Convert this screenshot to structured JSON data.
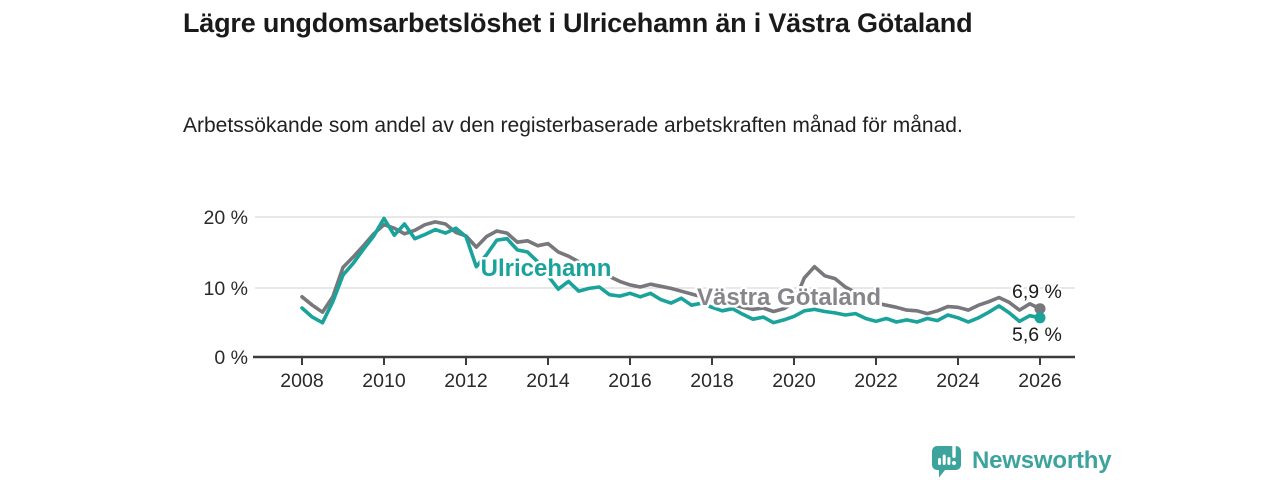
{
  "header": {
    "title": "Lägre ungdomsarbetslöshet i Ulricehamn än i Västra Götaland",
    "subtitle": "Arbetssökande som andel av den registerbaserade arbetskraften månad för månad."
  },
  "chart_data": {
    "type": "line",
    "title": "Lägre ungdomsarbetslöshet i Ulricehamn än i Västra Götaland",
    "subtitle": "Arbetssökande som andel av den registerbaserade arbetskraften månad för månad.",
    "unit": "%",
    "xlim": [
      2008,
      2026
    ],
    "ylim": [
      0,
      21
    ],
    "grid": "horizontal",
    "legend": "inline-labels",
    "x_tick_labels": [
      "2008",
      "2010",
      "2012",
      "2014",
      "2016",
      "2018",
      "2020",
      "2022",
      "2024",
      "2026"
    ],
    "y_tick_labels": [
      "0 %",
      "10 %",
      "20 %"
    ],
    "x": [
      2008,
      2008.25,
      2008.5,
      2008.75,
      2009,
      2009.25,
      2009.5,
      2009.75,
      2010,
      2010.25,
      2010.5,
      2010.75,
      2011,
      2011.25,
      2011.5,
      2011.75,
      2012,
      2012.25,
      2012.5,
      2012.75,
      2013,
      2013.25,
      2013.5,
      2013.75,
      2014,
      2014.25,
      2014.5,
      2014.75,
      2015,
      2015.25,
      2015.5,
      2015.75,
      2016,
      2016.25,
      2016.5,
      2016.75,
      2017,
      2017.25,
      2017.5,
      2017.75,
      2018,
      2018.25,
      2018.5,
      2018.75,
      2019,
      2019.25,
      2019.5,
      2019.75,
      2020,
      2020.25,
      2020.5,
      2020.75,
      2021,
      2021.25,
      2021.5,
      2021.75,
      2022,
      2022.25,
      2022.5,
      2022.75,
      2023,
      2023.25,
      2023.5,
      2023.75,
      2024,
      2024.25,
      2024.5,
      2024.75,
      2025,
      2025.25,
      2025.5,
      2025.75,
      2026
    ],
    "series": [
      {
        "name": "Västra Götaland",
        "color": "#77777c",
        "label_color": "#85858a",
        "end_label": "6,9 %",
        "end_value": 6.9,
        "values": [
          8.6,
          7.4,
          6.4,
          8.6,
          12.8,
          14.3,
          15.9,
          17.6,
          18.9,
          18.4,
          17.6,
          18.1,
          18.9,
          19.3,
          19.0,
          17.8,
          17.3,
          15.7,
          17.2,
          18.0,
          17.7,
          16.4,
          16.6,
          15.9,
          16.2,
          15.0,
          14.4,
          13.6,
          12.6,
          12.1,
          11.5,
          10.8,
          10.3,
          10.0,
          10.4,
          10.1,
          9.8,
          9.4,
          9.0,
          8.6,
          8.1,
          7.8,
          7.5,
          7.1,
          6.8,
          7.0,
          6.5,
          6.9,
          7.8,
          11.3,
          12.9,
          11.6,
          11.2,
          10.0,
          9.2,
          8.3,
          7.7,
          7.4,
          7.1,
          6.7,
          6.6,
          6.2,
          6.6,
          7.2,
          7.1,
          6.7,
          7.4,
          7.9,
          8.5,
          7.8,
          6.7,
          7.6,
          6.9
        ]
      },
      {
        "name": "Ulricehamn",
        "color": "#1aa39b",
        "label_color": "#1aa39b",
        "end_label": "5,6 %",
        "end_value": 5.6,
        "values": [
          7.0,
          5.7,
          4.9,
          7.9,
          11.7,
          13.4,
          15.4,
          17.3,
          19.8,
          17.4,
          19.0,
          16.9,
          17.5,
          18.2,
          17.7,
          18.4,
          17.2,
          12.9,
          14.6,
          16.7,
          16.9,
          15.3,
          15.0,
          13.6,
          11.6,
          9.7,
          10.8,
          9.4,
          9.8,
          10.0,
          8.9,
          8.7,
          9.1,
          8.6,
          9.1,
          8.2,
          7.7,
          8.4,
          7.4,
          7.7,
          7.1,
          6.6,
          6.9,
          6.1,
          5.4,
          5.7,
          4.9,
          5.3,
          5.8,
          6.6,
          6.8,
          6.5,
          6.3,
          6.0,
          6.2,
          5.5,
          5.1,
          5.5,
          5.0,
          5.3,
          5.0,
          5.5,
          5.2,
          6.0,
          5.6,
          5.0,
          5.6,
          6.4,
          7.3,
          6.3,
          5.1,
          5.9,
          5.6
        ]
      }
    ]
  },
  "footer": {
    "brand": "Newsworthy"
  },
  "colors": {
    "brand_teal": "#3da49d",
    "series_teal": "#1aa39b",
    "series_gray": "#77777c",
    "grid": "#d9d9d9",
    "axis": "#3c3c3c",
    "title_text": "#1a1a1a"
  }
}
